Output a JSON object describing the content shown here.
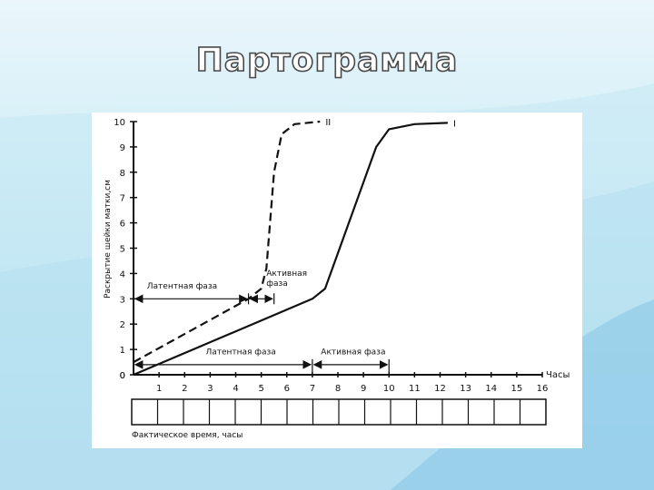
{
  "slide": {
    "title": "Партограмма",
    "colors": {
      "background_top": "#eaf6fb",
      "background_bottom": "#a8d8ee",
      "accent": "#6fb6dc"
    }
  },
  "chart_data": {
    "type": "line",
    "ylabel": "Раскрытие шейки матки,см",
    "xlabel": "Часы",
    "footer_label": "Фактическое время, часы",
    "xlim": [
      0,
      16
    ],
    "ylim": [
      0,
      10
    ],
    "x_ticks": [
      "1",
      "2",
      "3",
      "4",
      "5",
      "6",
      "7",
      "8",
      "9",
      "10",
      "11",
      "12",
      "13",
      "14",
      "15",
      "16"
    ],
    "y_ticks": [
      "0",
      "1",
      "2",
      "3",
      "4",
      "5",
      "6",
      "7",
      "8",
      "9",
      "10"
    ],
    "series": [
      {
        "name": "I",
        "style": "solid",
        "points": [
          [
            0,
            0
          ],
          [
            7,
            3
          ],
          [
            7.5,
            3.4
          ],
          [
            9.5,
            9
          ],
          [
            10,
            9.7
          ],
          [
            11,
            9.9
          ],
          [
            12.3,
            9.95
          ]
        ]
      },
      {
        "name": "II",
        "style": "dashed",
        "points": [
          [
            0,
            0.5
          ],
          [
            4.5,
            3
          ],
          [
            5,
            3.4
          ],
          [
            5.2,
            4.2
          ],
          [
            5.5,
            8
          ],
          [
            5.8,
            9.5
          ],
          [
            6.3,
            9.9
          ],
          [
            7.3,
            10
          ]
        ]
      }
    ],
    "annotations": {
      "upper_latent": "Латентная фаза",
      "upper_active": "Активная фаза",
      "lower_latent": "Латентная фаза",
      "lower_active": "Активная фаза"
    },
    "phases": {
      "upper_latent_range": [
        0,
        4.5
      ],
      "upper_active_range": [
        4.5,
        5.5
      ],
      "lower_latent_range": [
        0,
        7
      ],
      "lower_active_range": [
        7,
        10
      ],
      "upper_level": 3,
      "lower_level": 0.4
    },
    "grid": false,
    "footer_boxes": 16
  }
}
